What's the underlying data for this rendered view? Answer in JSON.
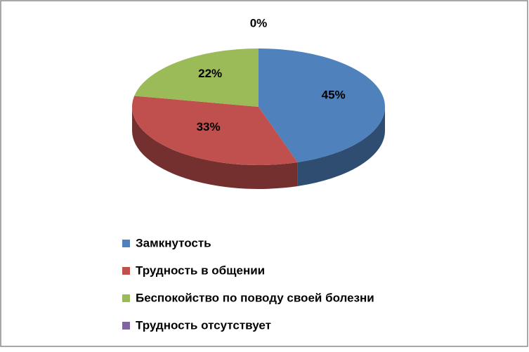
{
  "chart_data": {
    "type": "pie",
    "categories": [
      "Замкнутость",
      "Трудность в общении",
      "Беспокойство по поводу своей болезни",
      "Трудность отсутствует"
    ],
    "values": [
      45,
      33,
      22,
      0
    ],
    "value_labels": [
      "45%",
      "33%",
      "22%",
      "0%"
    ],
    "colors": [
      "#4f81bd",
      "#c0504d",
      "#9bbb59",
      "#8064a2"
    ],
    "legend": "bottom"
  }
}
